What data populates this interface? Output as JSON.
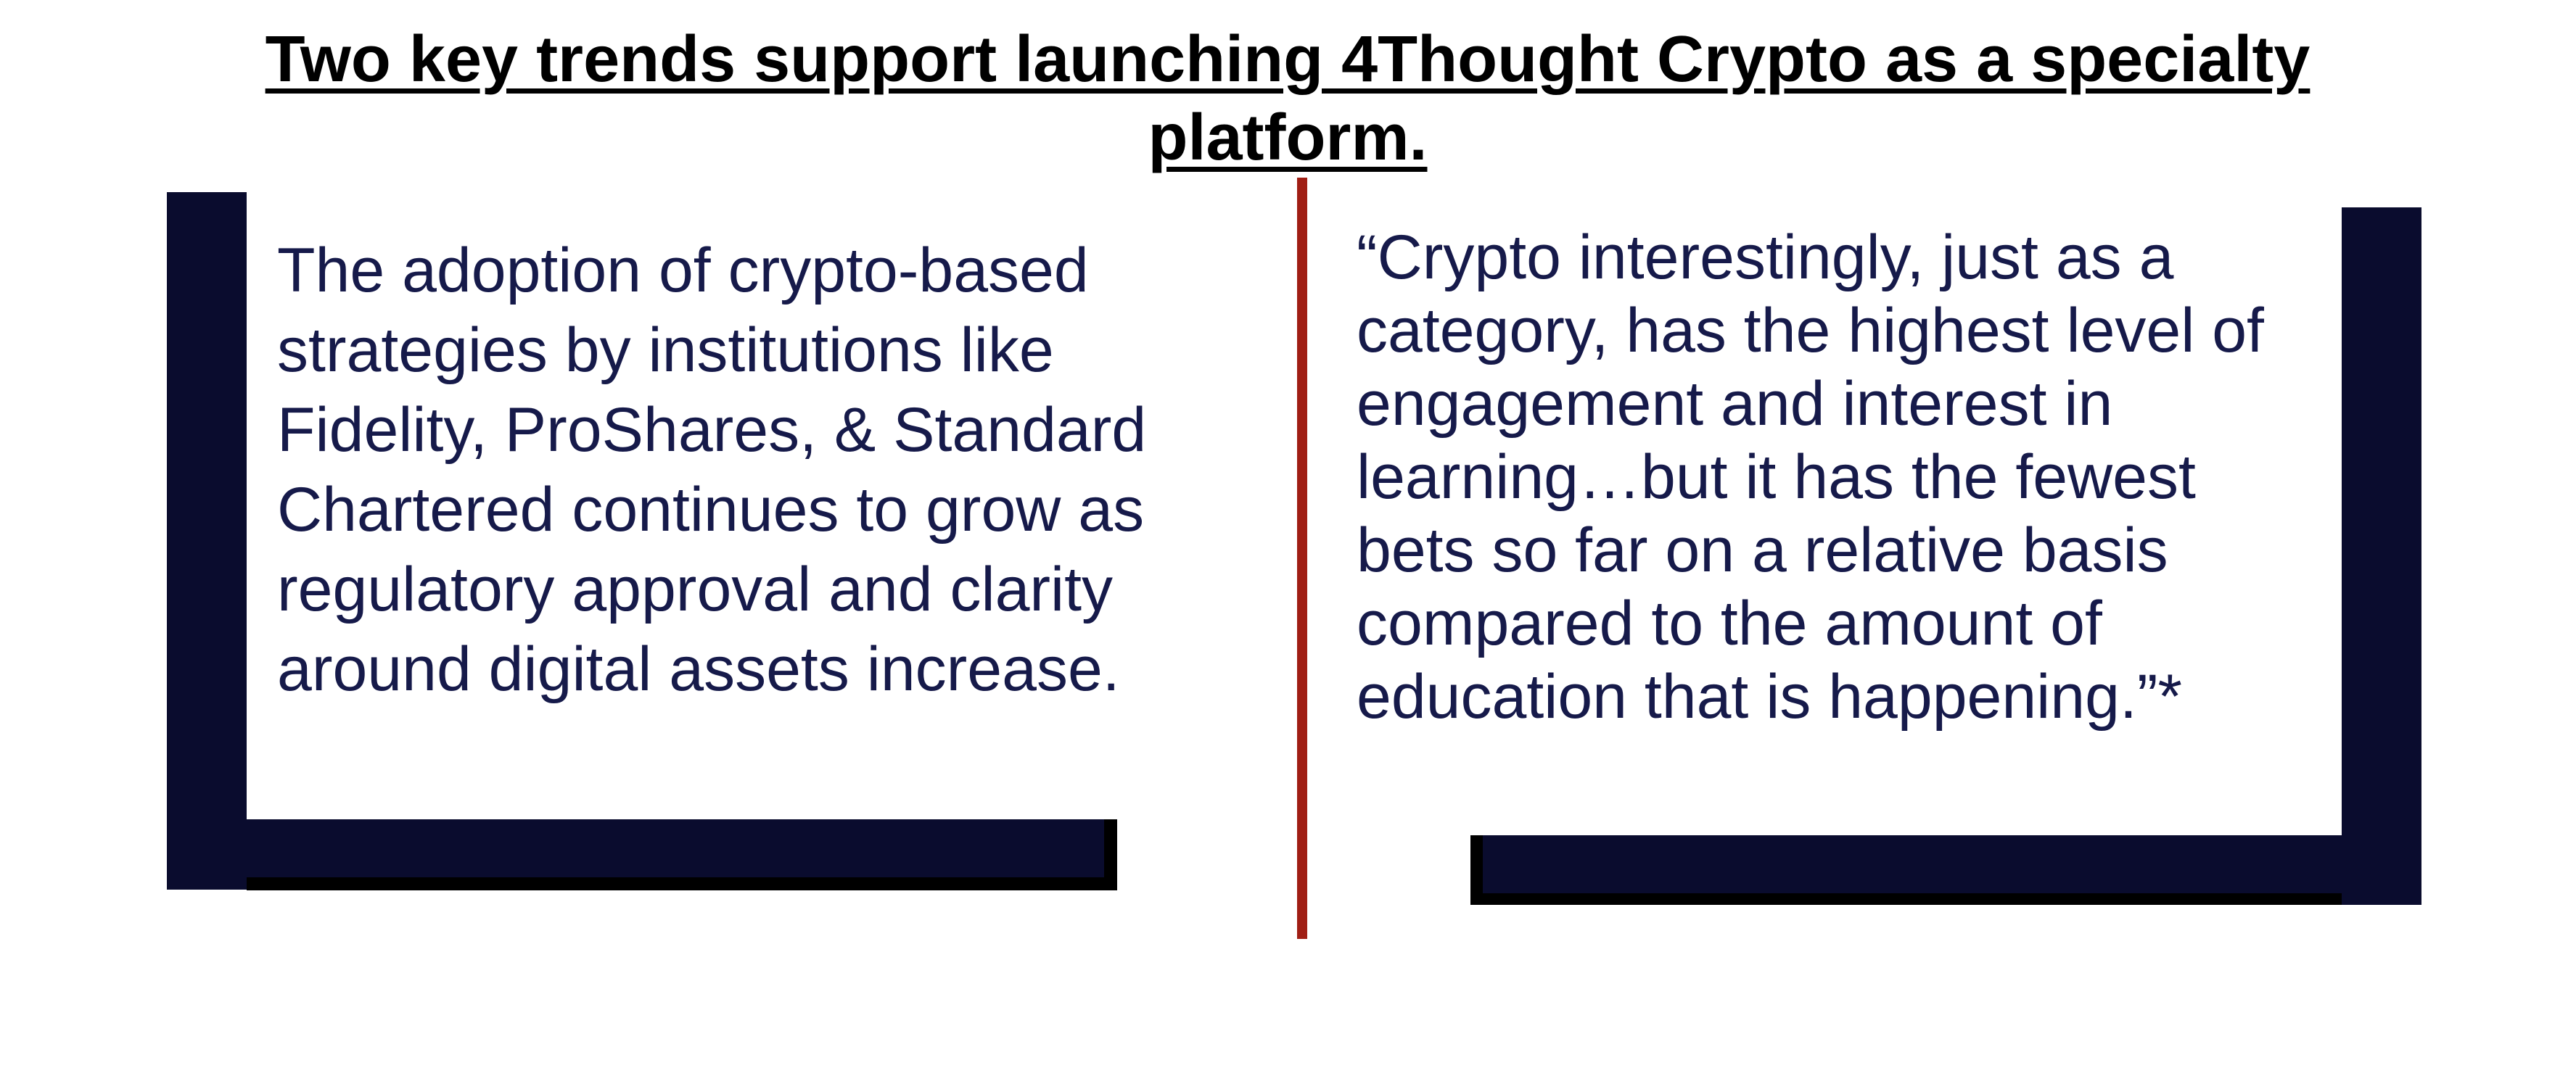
{
  "slide": {
    "title": "Two key trends support launching 4Thought Crypto as a specialty platform.",
    "left_panel": {
      "text": "The adoption of crypto-based strategies by institutions like Fidelity, ProShares, & Standard Chartered continues to grow as regulatory approval and clarity around digital assets increase."
    },
    "right_panel": {
      "quote": "“Crypto interestingly, just as a category, has the highest level of engagement and interest in learning…but it has the fewest bets so far on a relative basis compared to the amount of education that is happening.”*"
    }
  },
  "colors": {
    "bracket": "#0a0c2e",
    "divider": "#a01e14",
    "body_text": "#161a4a",
    "title_text": "#000000"
  }
}
